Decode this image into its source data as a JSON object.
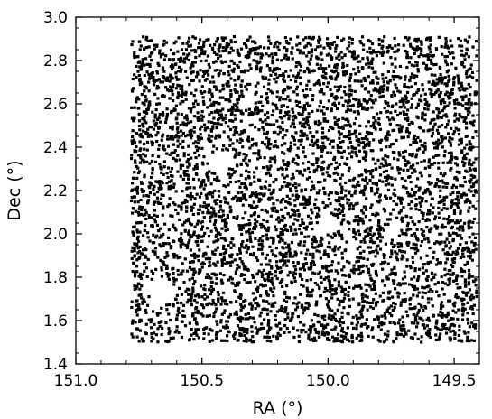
{
  "chart_data": {
    "type": "scatter",
    "title": "",
    "xlabel": "RA (°)",
    "ylabel": "Dec (°)",
    "x_inverted": true,
    "xlim": [
      151.0,
      149.4
    ],
    "ylim": [
      1.4,
      3.0
    ],
    "grid": false,
    "marker_color": "#000000",
    "x_ticks": [
      {
        "value": 151.0,
        "label": "151.0"
      },
      {
        "value": 150.5,
        "label": "150.5"
      },
      {
        "value": 150.0,
        "label": "150.0"
      },
      {
        "value": 149.5,
        "label": "149.5"
      }
    ],
    "y_ticks": [
      {
        "value": 1.4,
        "label": "1.4"
      },
      {
        "value": 1.6,
        "label": "1.6"
      },
      {
        "value": 1.8,
        "label": "1.8"
      },
      {
        "value": 2.0,
        "label": "2.0"
      },
      {
        "value": 2.2,
        "label": "2.2"
      },
      {
        "value": 2.4,
        "label": "2.4"
      },
      {
        "value": 2.6,
        "label": "2.6"
      },
      {
        "value": 2.8,
        "label": "2.8"
      },
      {
        "value": 3.0,
        "label": "3.0"
      }
    ],
    "survey_region": {
      "ra_range": [
        150.78,
        149.41
      ],
      "dec_range": [
        1.5,
        2.91
      ]
    },
    "points": [
      [
        150.72,
        2.86
      ],
      [
        150.55,
        2.83
      ],
      [
        150.4,
        2.88
      ],
      [
        150.22,
        2.8
      ],
      [
        150.05,
        2.85
      ],
      [
        149.88,
        2.82
      ],
      [
        149.7,
        2.87
      ],
      [
        149.52,
        2.84
      ],
      [
        150.68,
        2.71
      ],
      [
        150.49,
        2.74
      ],
      [
        150.31,
        2.69
      ],
      [
        150.12,
        2.73
      ],
      [
        149.95,
        2.68
      ],
      [
        149.77,
        2.72
      ],
      [
        149.6,
        2.7
      ],
      [
        149.45,
        2.75
      ],
      [
        150.75,
        2.58
      ],
      [
        150.58,
        2.61
      ],
      [
        150.43,
        2.55
      ],
      [
        150.26,
        2.59
      ],
      [
        150.09,
        2.63
      ],
      [
        149.91,
        2.57
      ],
      [
        149.73,
        2.6
      ],
      [
        149.56,
        2.56
      ],
      [
        150.7,
        2.45
      ],
      [
        150.53,
        2.49
      ],
      [
        150.36,
        2.43
      ],
      [
        150.19,
        2.47
      ],
      [
        150.02,
        2.42
      ],
      [
        149.84,
        2.46
      ],
      [
        149.66,
        2.44
      ],
      [
        149.48,
        2.48
      ],
      [
        150.73,
        2.33
      ],
      [
        150.57,
        2.36
      ],
      [
        150.39,
        2.3
      ],
      [
        150.21,
        2.34
      ],
      [
        150.04,
        2.31
      ],
      [
        149.86,
        2.35
      ],
      [
        149.69,
        2.32
      ],
      [
        149.51,
        2.37
      ],
      [
        150.66,
        2.21
      ],
      [
        150.5,
        2.24
      ],
      [
        150.33,
        2.18
      ],
      [
        150.16,
        2.22
      ],
      [
        149.99,
        2.19
      ],
      [
        149.81,
        2.23
      ],
      [
        149.64,
        2.2
      ],
      [
        149.47,
        2.17
      ],
      [
        150.74,
        2.09
      ],
      [
        150.56,
        2.12
      ],
      [
        150.41,
        2.06
      ],
      [
        150.24,
        2.1
      ],
      [
        150.07,
        2.05
      ],
      [
        149.89,
        2.08
      ],
      [
        149.71,
        2.11
      ],
      [
        149.54,
        2.07
      ],
      [
        150.69,
        1.96
      ],
      [
        150.52,
        1.99
      ],
      [
        150.35,
        1.93
      ],
      [
        150.18,
        1.97
      ],
      [
        150.0,
        1.94
      ],
      [
        149.83,
        1.98
      ],
      [
        149.65,
        1.95
      ],
      [
        149.49,
        1.92
      ],
      [
        150.64,
        1.84
      ],
      [
        150.47,
        1.87
      ],
      [
        150.3,
        1.81
      ],
      [
        150.13,
        1.85
      ],
      [
        149.96,
        1.82
      ],
      [
        149.79,
        1.86
      ],
      [
        149.61,
        1.83
      ],
      [
        149.44,
        1.8
      ],
      [
        150.71,
        1.71
      ],
      [
        150.46,
        1.74
      ],
      [
        150.28,
        1.68
      ],
      [
        150.11,
        1.72
      ],
      [
        149.94,
        1.69
      ],
      [
        149.76,
        1.73
      ],
      [
        149.59,
        1.7
      ],
      [
        149.42,
        1.67
      ],
      [
        150.67,
        1.59
      ],
      [
        150.48,
        1.62
      ],
      [
        150.32,
        1.56
      ],
      [
        150.15,
        1.6
      ],
      [
        149.97,
        1.57
      ],
      [
        149.8,
        1.61
      ],
      [
        149.62,
        1.58
      ],
      [
        149.46,
        1.55
      ],
      [
        150.4,
        1.53
      ],
      [
        150.2,
        1.52
      ],
      [
        150.0,
        1.54
      ],
      [
        149.8,
        1.51
      ],
      [
        149.6,
        1.53
      ],
      [
        150.6,
        1.9
      ],
      [
        150.25,
        2.55
      ],
      [
        149.9,
        2.25
      ]
    ]
  }
}
